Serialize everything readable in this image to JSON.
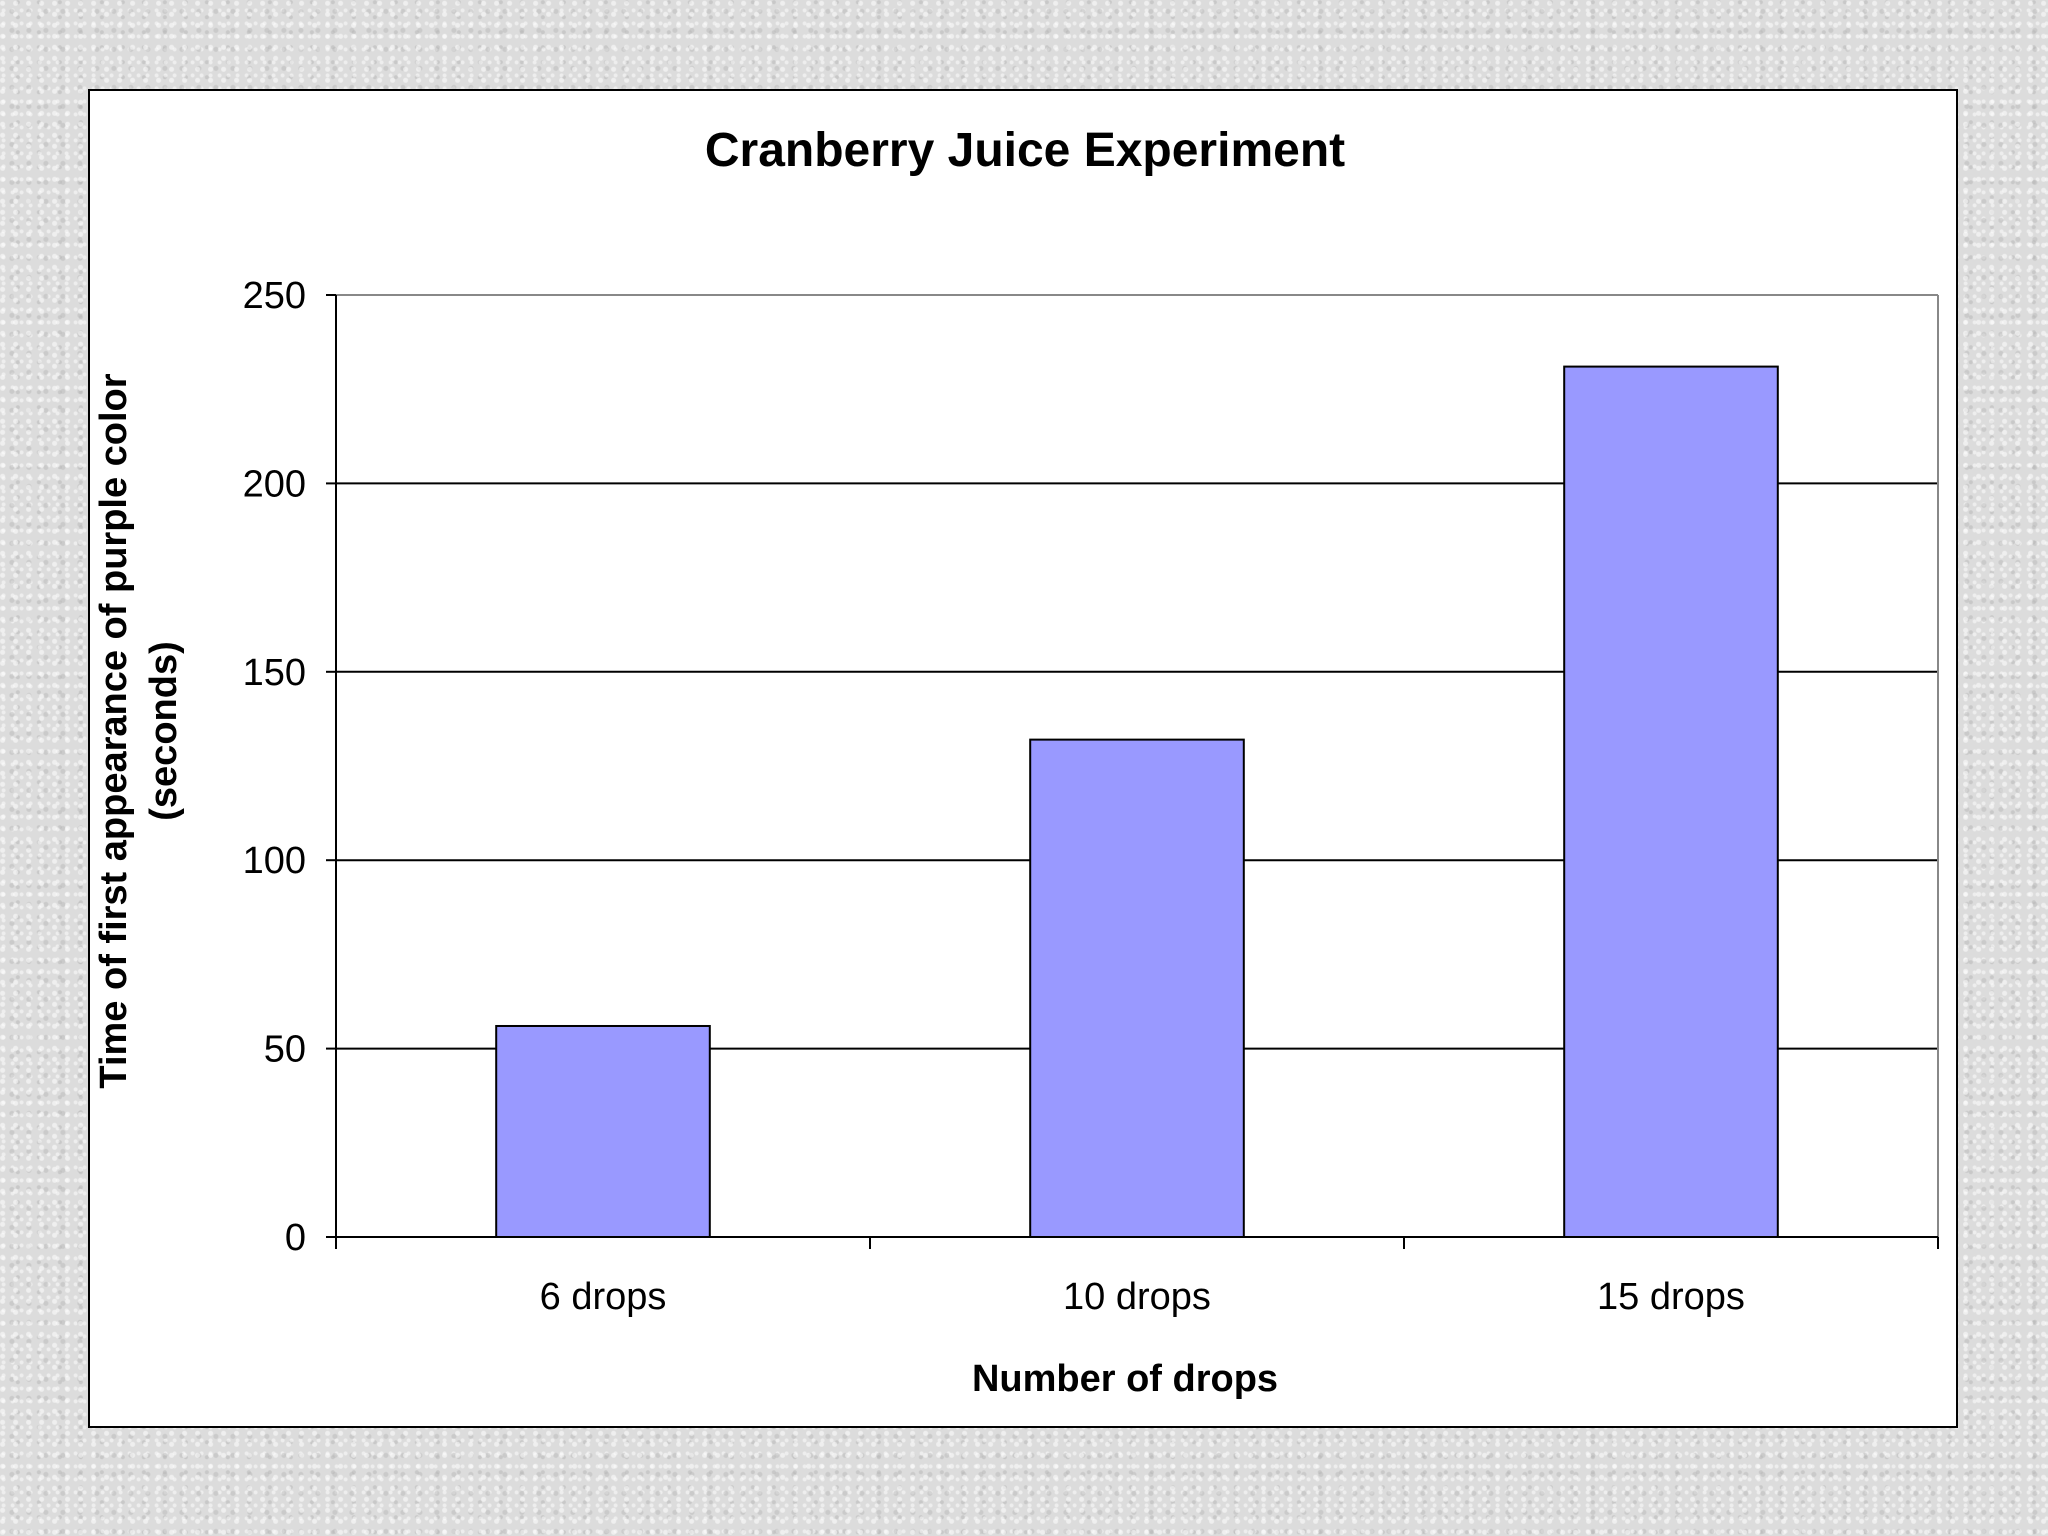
{
  "chart_data": {
    "type": "bar",
    "title": "Cranberry Juice Experiment",
    "xlabel": "Number of drops",
    "ylabel": [
      "Time of first appearance of purple color",
      "(seconds)"
    ],
    "categories": [
      "6 drops",
      "10 drops",
      "15 drops"
    ],
    "values": [
      56,
      132,
      231
    ],
    "ylim": [
      0,
      250
    ],
    "yticks": [
      0,
      50,
      100,
      150,
      200,
      250
    ],
    "grid": true,
    "legend": "none",
    "bar_color": "#9999ff",
    "bar_edge_color": "#000000"
  }
}
